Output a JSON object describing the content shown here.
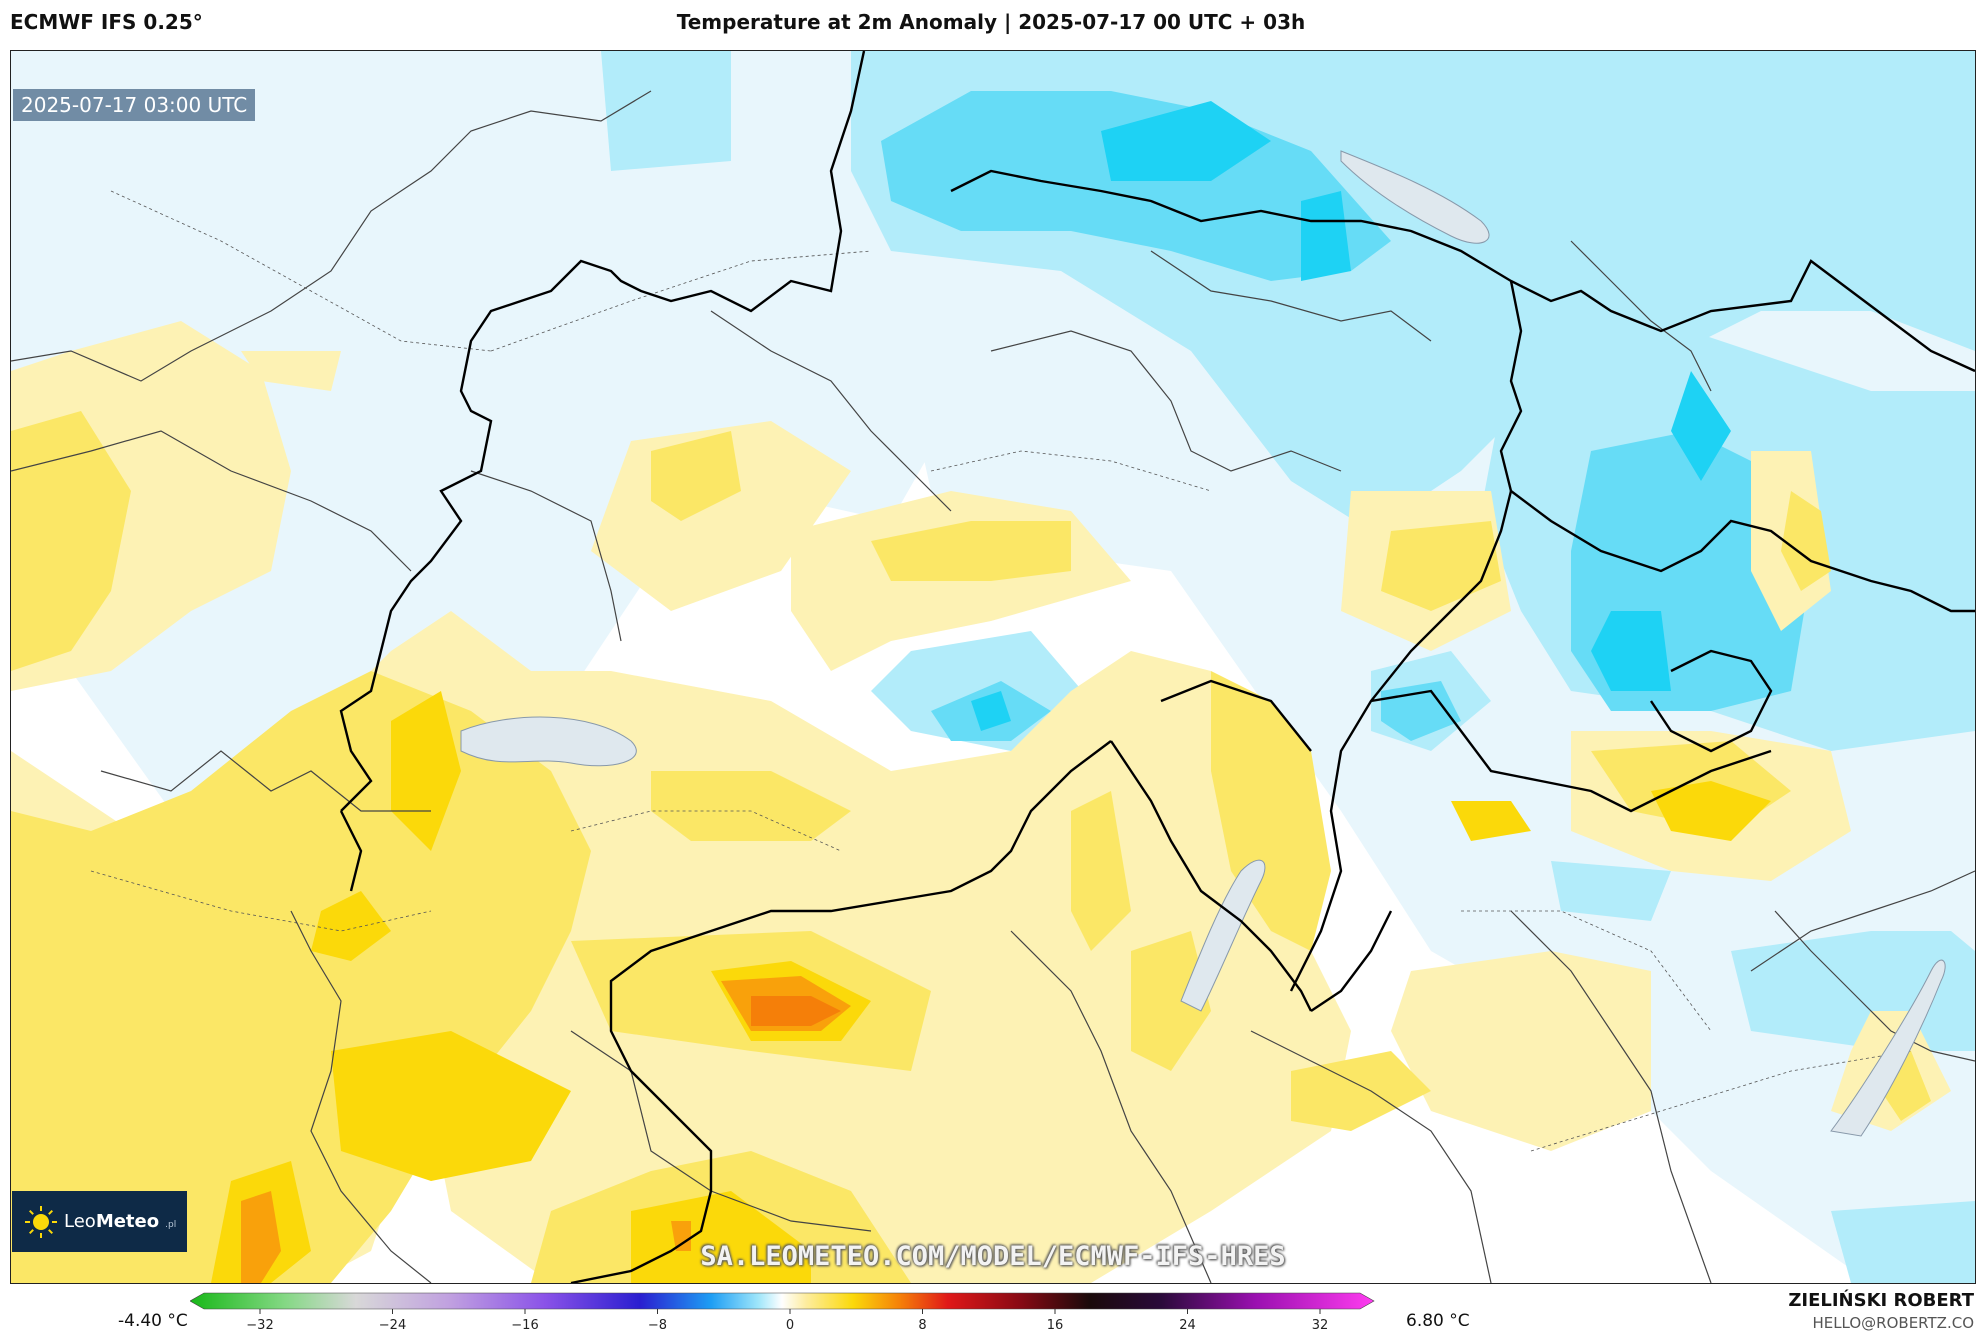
{
  "header": {
    "model": "ECMWF IFS 0.25°",
    "title": "Temperature at 2m Anomaly | 2025-07-17 00 UTC + 03h"
  },
  "map": {
    "valid_time": "2025-07-17 03:00 UTC",
    "watermark": "SA.LEOMETEO.COM/MODEL/ECMWF-IFS-HRES",
    "logo": {
      "text_regular": "Leo",
      "text_bold": "Meteo",
      "suffix": ".pl",
      "icon": "sun-icon"
    }
  },
  "legend": {
    "min_label": "-4.40 °C",
    "max_label": "6.80 °C",
    "ticks": [
      "−32",
      "−24",
      "−16",
      "−8",
      "0",
      "8",
      "16",
      "24",
      "32"
    ],
    "tick_values": [
      -32,
      -24,
      -16,
      -8,
      0,
      8,
      16,
      24,
      32
    ],
    "range": [
      -32,
      32
    ]
  },
  "author": {
    "name": "ZIELIŃSKI ROBERT",
    "email": "HELLO@ROBERTZ.CO"
  },
  "colors": {
    "cold_light": "#e8f6fc",
    "cold_mid": "#b2ecfa",
    "cold_strong": "#66dcf6",
    "cold_deep": "#1ed2f4",
    "warm_light": "#fdf2b4",
    "warm_mid": "#fbe766",
    "warm_strong": "#fbd90a",
    "warm_deep": "#f9a10b",
    "warm_max": "#f57f09",
    "logo_bg": "#0e2a47"
  }
}
